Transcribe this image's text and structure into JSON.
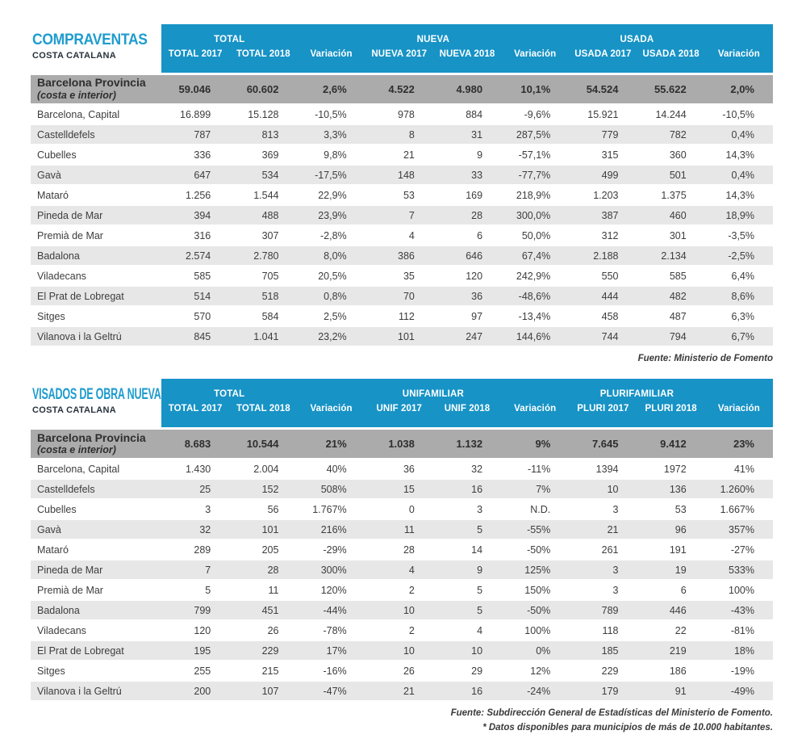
{
  "colors": {
    "header_blue": "#1793c6",
    "title_cyan": "#1e9cce",
    "subtitle_dark": "#28323c",
    "total_band_gray": "#ababab",
    "row_alt_gray": "#e7e7e7",
    "text_dark": "#3d3d3d"
  },
  "tables": [
    {
      "title": "COMPRAVENTAS",
      "subtitle": "COSTA CATALANA",
      "groups": [
        "TOTAL",
        "NUEVA",
        "USADA"
      ],
      "columns": [
        "TOTAL 2017",
        "TOTAL 2018",
        "Variación",
        "NUEVA 2017",
        "NUEVA 2018",
        "Variación",
        "USADA 2017",
        "USADA 2018",
        "Variación"
      ],
      "total_row": {
        "label": "Barcelona Provincia",
        "sublabel": "(costa e interior)",
        "values": [
          "59.046",
          "60.602",
          "2,6%",
          "4.522",
          "4.980",
          "10,1%",
          "54.524",
          "55.622",
          "2,0%"
        ]
      },
      "rows": [
        {
          "label": "Barcelona, Capital",
          "values": [
            "16.899",
            "15.128",
            "-10,5%",
            "978",
            "884",
            "-9,6%",
            "15.921",
            "14.244",
            "-10,5%"
          ]
        },
        {
          "label": "Castelldefels",
          "values": [
            "787",
            "813",
            "3,3%",
            "8",
            "31",
            "287,5%",
            "779",
            "782",
            "0,4%"
          ]
        },
        {
          "label": "Cubelles",
          "values": [
            "336",
            "369",
            "9,8%",
            "21",
            "9",
            "-57,1%",
            "315",
            "360",
            "14,3%"
          ]
        },
        {
          "label": "Gavà",
          "values": [
            "647",
            "534",
            "-17,5%",
            "148",
            "33",
            "-77,7%",
            "499",
            "501",
            "0,4%"
          ]
        },
        {
          "label": "Mataró",
          "values": [
            "1.256",
            "1.544",
            "22,9%",
            "53",
            "169",
            "218,9%",
            "1.203",
            "1.375",
            "14,3%"
          ]
        },
        {
          "label": "Pineda de Mar",
          "values": [
            "394",
            "488",
            "23,9%",
            "7",
            "28",
            "300,0%",
            "387",
            "460",
            "18,9%"
          ]
        },
        {
          "label": "Premià de Mar",
          "values": [
            "316",
            "307",
            "-2,8%",
            "4",
            "6",
            "50,0%",
            "312",
            "301",
            "-3,5%"
          ]
        },
        {
          "label": "Badalona",
          "values": [
            "2.574",
            "2.780",
            "8,0%",
            "386",
            "646",
            "67,4%",
            "2.188",
            "2.134",
            "-2,5%"
          ]
        },
        {
          "label": "Viladecans",
          "values": [
            "585",
            "705",
            "20,5%",
            "35",
            "120",
            "242,9%",
            "550",
            "585",
            "6,4%"
          ]
        },
        {
          "label": "El Prat de Lobregat",
          "values": [
            "514",
            "518",
            "0,8%",
            "70",
            "36",
            "-48,6%",
            "444",
            "482",
            "8,6%"
          ]
        },
        {
          "label": "Sitges",
          "values": [
            "570",
            "584",
            "2,5%",
            "112",
            "97",
            "-13,4%",
            "458",
            "487",
            "6,3%"
          ]
        },
        {
          "label": "Vilanova i la Geltrú",
          "values": [
            "845",
            "1.041",
            "23,2%",
            "101",
            "247",
            "144,6%",
            "744",
            "794",
            "6,7%"
          ]
        }
      ],
      "footnotes": [
        "Fuente: Ministerio de Fomento"
      ]
    },
    {
      "title": "VISADOS DE OBRA NUEVA",
      "subtitle": "COSTA CATALANA",
      "groups": [
        "TOTAL",
        "UNIFAMILIAR",
        "PLURIFAMILIAR"
      ],
      "columns": [
        "TOTAL 2017",
        "TOTAL 2018",
        "Variación",
        "UNIF 2017",
        "UNIF 2018",
        "Variación",
        "PLURI 2017",
        "PLURI 2018",
        "Variación"
      ],
      "total_row": {
        "label": "Barcelona Provincia",
        "sublabel": "(costa e interior)",
        "values": [
          "8.683",
          "10.544",
          "21%",
          "1.038",
          "1.132",
          "9%",
          "7.645",
          "9.412",
          "23%"
        ]
      },
      "rows": [
        {
          "label": "Barcelona, Capital",
          "values": [
            "1.430",
            "2.004",
            "40%",
            "36",
            "32",
            "-11%",
            "1394",
            "1972",
            "41%"
          ]
        },
        {
          "label": "Castelldefels",
          "values": [
            "25",
            "152",
            "508%",
            "15",
            "16",
            "7%",
            "10",
            "136",
            "1.260%"
          ]
        },
        {
          "label": "Cubelles",
          "values": [
            "3",
            "56",
            "1.767%",
            "0",
            "3",
            "N.D.",
            "3",
            "53",
            "1.667%"
          ]
        },
        {
          "label": "Gavà",
          "values": [
            "32",
            "101",
            "216%",
            "11",
            "5",
            "-55%",
            "21",
            "96",
            "357%"
          ]
        },
        {
          "label": "Mataró",
          "values": [
            "289",
            "205",
            "-29%",
            "28",
            "14",
            "-50%",
            "261",
            "191",
            "-27%"
          ]
        },
        {
          "label": "Pineda de Mar",
          "values": [
            "7",
            "28",
            "300%",
            "4",
            "9",
            "125%",
            "3",
            "19",
            "533%"
          ]
        },
        {
          "label": "Premià de Mar",
          "values": [
            "5",
            "11",
            "120%",
            "2",
            "5",
            "150%",
            "3",
            "6",
            "100%"
          ]
        },
        {
          "label": "Badalona",
          "values": [
            "799",
            "451",
            "-44%",
            "10",
            "5",
            "-50%",
            "789",
            "446",
            "-43%"
          ]
        },
        {
          "label": "Viladecans",
          "values": [
            "120",
            "26",
            "-78%",
            "2",
            "4",
            "100%",
            "118",
            "22",
            "-81%"
          ]
        },
        {
          "label": "El Prat de Lobregat",
          "values": [
            "195",
            "229",
            "17%",
            "10",
            "10",
            "0%",
            "185",
            "219",
            "18%"
          ]
        },
        {
          "label": "Sitges",
          "values": [
            "255",
            "215",
            "-16%",
            "26",
            "29",
            "12%",
            "229",
            "186",
            "-19%"
          ]
        },
        {
          "label": "Vilanova i la Geltrú",
          "values": [
            "200",
            "107",
            "-47%",
            "21",
            "16",
            "-24%",
            "179",
            "91",
            "-49%"
          ]
        }
      ],
      "footnotes": [
        "Fuente: Subdirección General de Estadísticas del Ministerio de Fomento.",
        "* Datos disponibles para municipios de más de 10.000 habitantes."
      ]
    }
  ]
}
